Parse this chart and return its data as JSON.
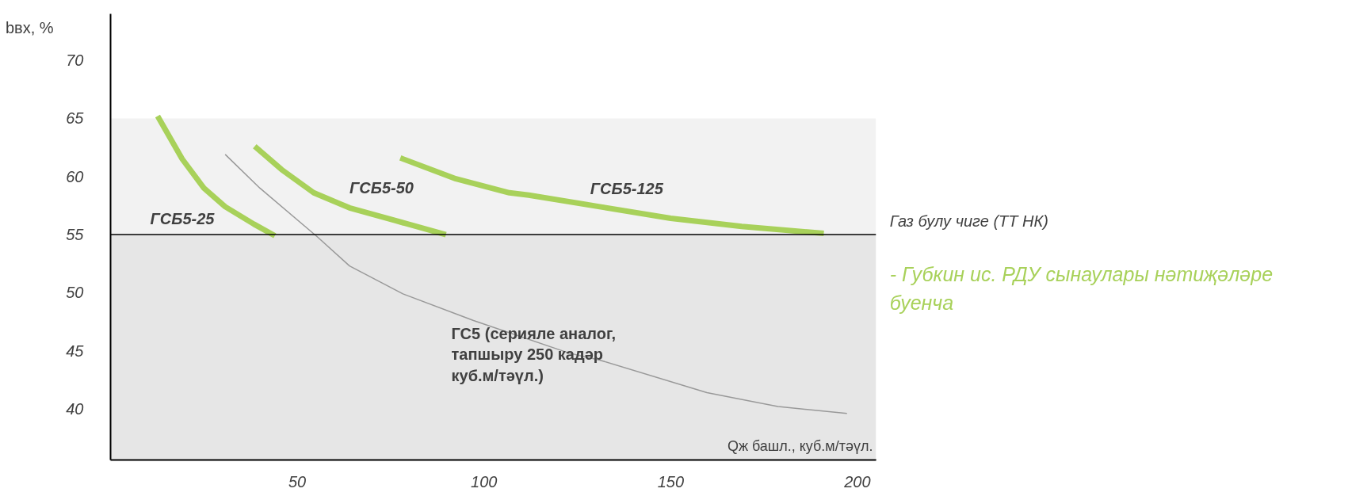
{
  "chart_data": {
    "type": "line",
    "xlabel": "Qж башл., куб.м/тәүл.",
    "ylabel": "bвх, %",
    "xlim": [
      0,
      205
    ],
    "ylim": [
      35.6,
      74
    ],
    "xticks": [
      50,
      100,
      150,
      200
    ],
    "yticks": [
      40,
      45,
      50,
      55,
      60,
      65,
      70
    ],
    "grid": false,
    "marker": "none",
    "line_style": "solid",
    "series": [
      {
        "name": "ГСБ5-25",
        "color": "#a8d15a",
        "x": [
          12.6,
          19.2,
          25,
          30.7,
          38.4,
          44
        ],
        "values": [
          65.2,
          61.5,
          59.0,
          57.4,
          55.9,
          54.9
        ]
      },
      {
        "name": "ГСБ5-50",
        "color": "#a8d15a",
        "x": [
          38.6,
          45.8,
          54.4,
          64,
          76.3,
          89.8
        ],
        "values": [
          62.6,
          60.6,
          58.6,
          57.3,
          56.2,
          55.0
        ]
      },
      {
        "name": "ГСБ5-125",
        "color": "#a8d15a",
        "x": [
          77.6,
          92.5,
          106.8,
          112,
          131,
          150,
          169,
          191
        ],
        "values": [
          61.6,
          59.8,
          58.6,
          58.4,
          57.4,
          56.4,
          55.7,
          55.1
        ]
      },
      {
        "name": "ГС5 (серияле аналог, тапшыру 250 кадәр куб.м/тәүл.)",
        "color": "#999999",
        "x": [
          30.7,
          40,
          55.4,
          64,
          78.3,
          97.2,
          122.8,
          131,
          159.7,
          178.7,
          197.2
        ],
        "values": [
          61.9,
          59.0,
          54.8,
          52.3,
          49.9,
          47.6,
          44.8,
          44.2,
          41.4,
          40.2,
          39.6
        ]
      }
    ],
    "bands": [
      {
        "axis": "y",
        "from": 55,
        "to": 65,
        "color": "#f2f2f2"
      },
      {
        "axis": "y",
        "from": 35.6,
        "to": 55,
        "color": "#e6e6e6"
      }
    ],
    "ref_lines": [
      {
        "axis": "y",
        "value": 55,
        "label": "Газ булу чиге (ТТ НК)",
        "color": "#000000"
      }
    ],
    "annotations": [
      "- Губкин ис. РДУ сынаулары нәтиҗәләре буенча"
    ]
  }
}
